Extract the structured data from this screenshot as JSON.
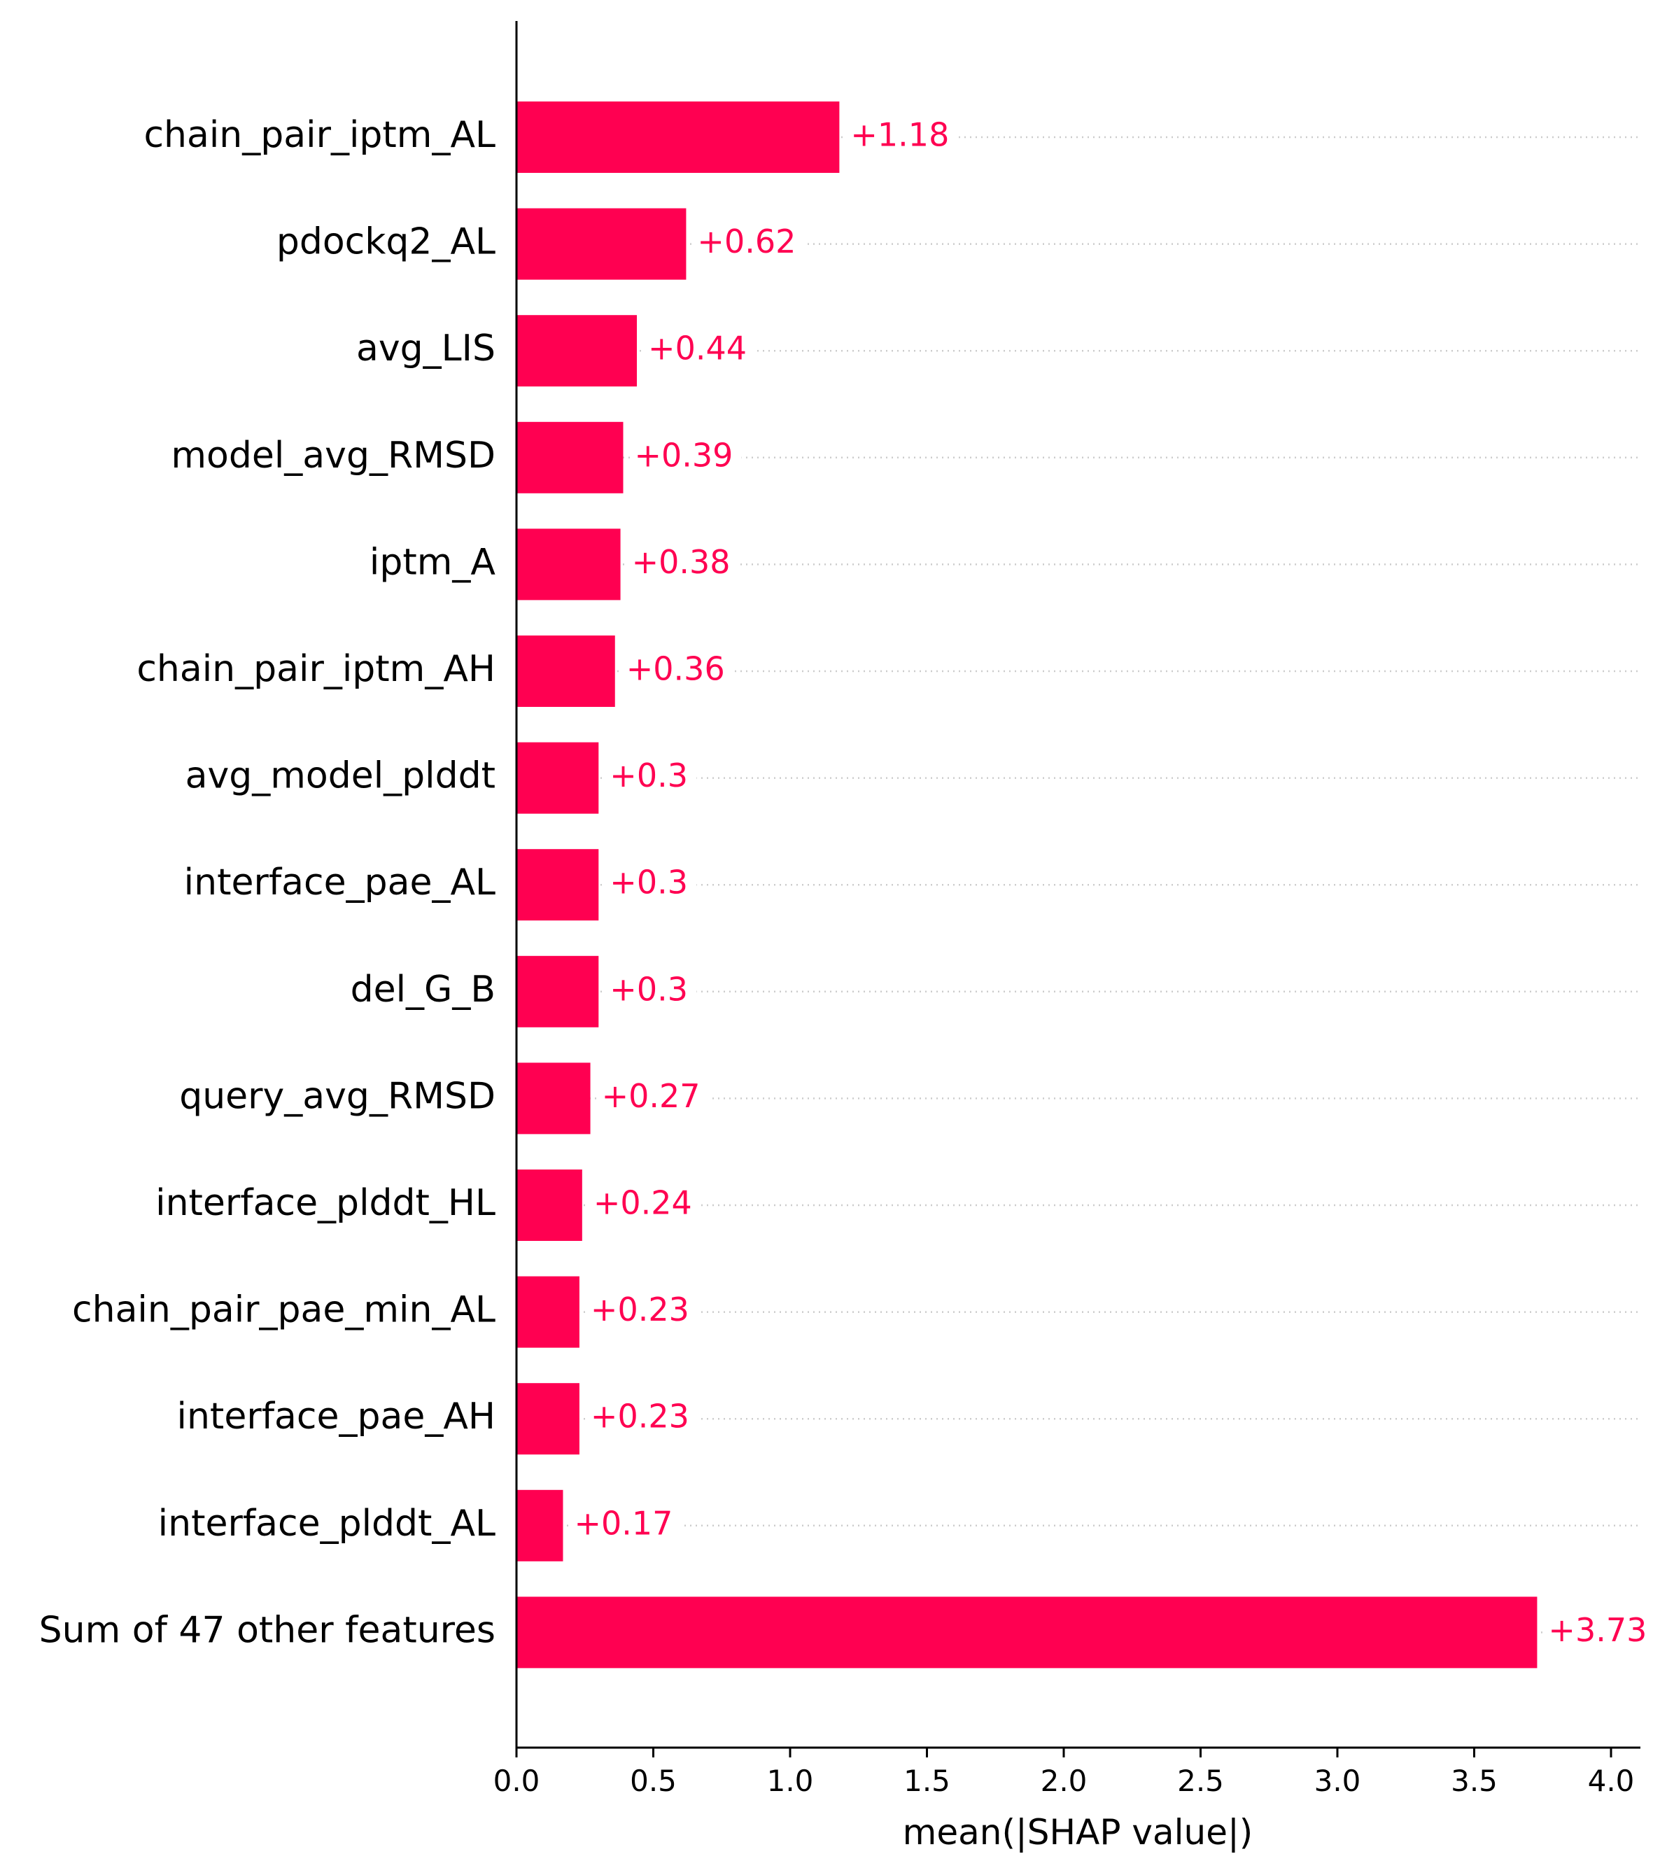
{
  "chart_data": {
    "type": "bar",
    "orientation": "horizontal",
    "categories": [
      "chain_pair_iptm_AL",
      "pdockq2_AL",
      "avg_LIS",
      "model_avg_RMSD",
      "iptm_A",
      "chain_pair_iptm_AH",
      "avg_model_plddt",
      "interface_pae_AL",
      "del_G_B",
      "query_avg_RMSD",
      "interface_plddt_HL",
      "chain_pair_pae_min_AL",
      "interface_pae_AH",
      "interface_plddt_AL",
      "Sum of 47 other features"
    ],
    "values": [
      1.18,
      0.62,
      0.44,
      0.39,
      0.38,
      0.36,
      0.3,
      0.3,
      0.3,
      0.27,
      0.24,
      0.23,
      0.23,
      0.17,
      3.73
    ],
    "value_labels": [
      "+1.18",
      "+0.62",
      "+0.44",
      "+0.39",
      "+0.38",
      "+0.36",
      "+0.3",
      "+0.3",
      "+0.3",
      "+0.27",
      "+0.24",
      "+0.23",
      "+0.23",
      "+0.17",
      "+3.73"
    ],
    "xlabel": "mean(|SHAP value|)",
    "ylabel": "",
    "title": "",
    "xlim": [
      0,
      4.12
    ],
    "xticks": [
      0.0,
      0.5,
      1.0,
      1.5,
      2.0,
      2.5,
      3.0,
      3.5,
      4.0
    ],
    "xtick_labels": [
      "0.0",
      "0.5",
      "1.0",
      "1.5",
      "2.0",
      "2.5",
      "3.0",
      "3.5",
      "4.0"
    ],
    "grid": "dotted horizontal row guides",
    "bar_color": "#ff0051",
    "value_label_color": "#ff0051",
    "guide_color": "#cccccc"
  }
}
